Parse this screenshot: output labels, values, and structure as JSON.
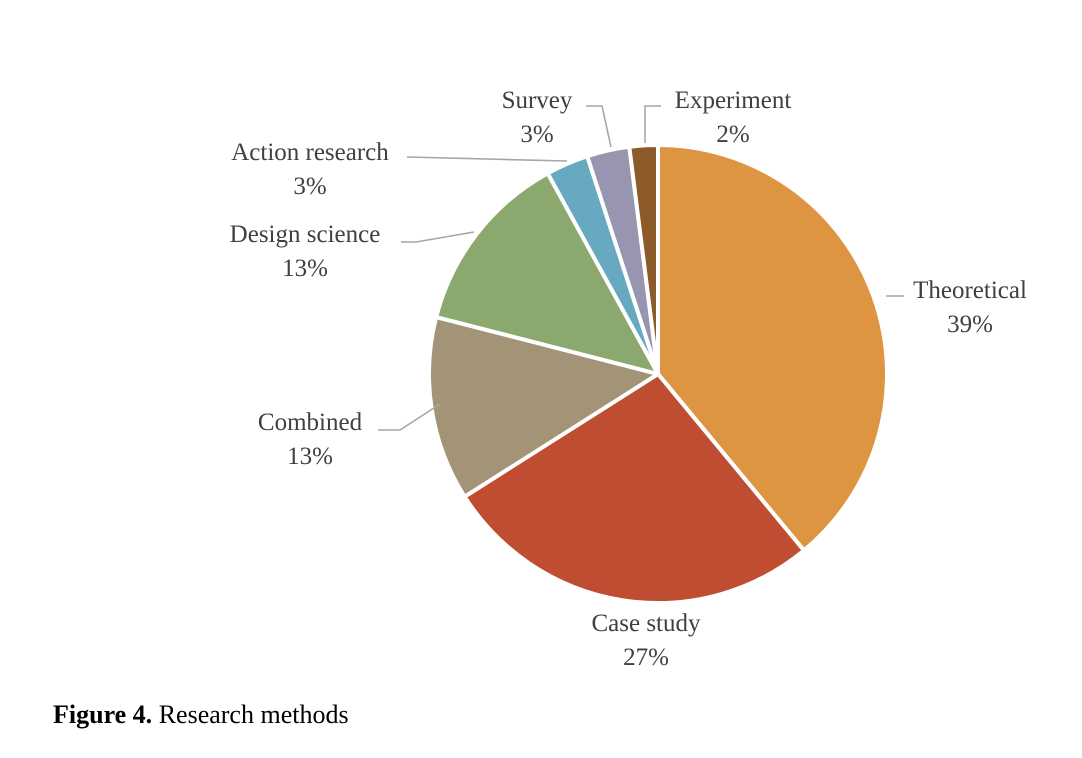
{
  "chart_data": {
    "type": "pie",
    "title": "",
    "start_angle_deg": 0,
    "direction": "clockwise",
    "slices": [
      {
        "label": "Theoretical",
        "value": 39,
        "value_label": "39%",
        "color": "#DD9541"
      },
      {
        "label": "Case study",
        "value": 27,
        "value_label": "27%",
        "color": "#BE4D31"
      },
      {
        "label": "Combined",
        "value": 13,
        "value_label": "13%",
        "color": "#A39477"
      },
      {
        "label": "Design science",
        "value": 13,
        "value_label": "13%",
        "color": "#8BA86E"
      },
      {
        "label": "Action research",
        "value": 3,
        "value_label": "3%",
        "color": "#67A9C0"
      },
      {
        "label": "Survey",
        "value": 3,
        "value_label": "3%",
        "color": "#9895B1"
      },
      {
        "label": "Experiment",
        "value": 2,
        "value_label": "2%",
        "color": "#8D5A2A"
      }
    ]
  },
  "caption": {
    "label": "Figure 4.",
    "text": "Research methods"
  }
}
